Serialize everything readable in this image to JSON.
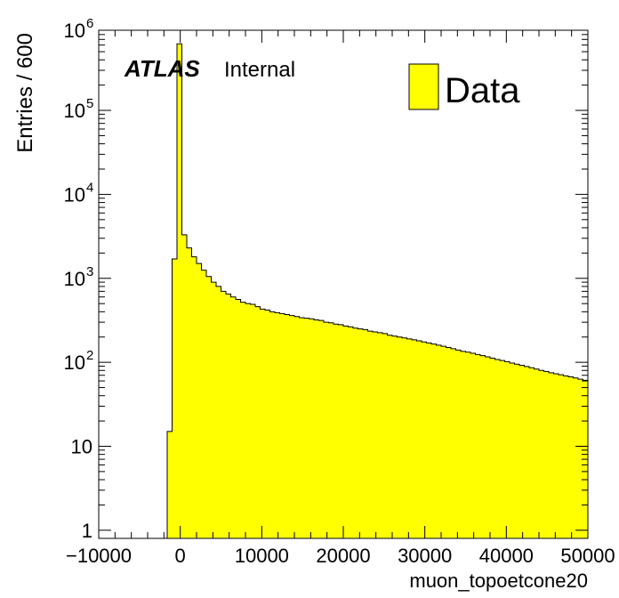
{
  "chart_data": {
    "type": "bar",
    "subtype": "histogram",
    "x_axis": {
      "label": "muon_topoetcone20",
      "range": [
        -10000,
        50000
      ],
      "tick_labels": [
        "−10000",
        "0",
        "10000",
        "20000",
        "30000",
        "40000",
        "50000"
      ],
      "tick_values": [
        -10000,
        0,
        10000,
        20000,
        30000,
        40000,
        50000
      ]
    },
    "y_axis": {
      "label": "Entries / 600",
      "scale": "log",
      "range": [
        0.8,
        900000
      ],
      "tick_labels": [
        {
          "value": 1,
          "base": "1",
          "exp": ""
        },
        {
          "value": 10,
          "base": "10",
          "exp": ""
        },
        {
          "value": 100,
          "base": "10",
          "exp": "2"
        },
        {
          "value": 1000,
          "base": "10",
          "exp": "3"
        },
        {
          "value": 10000,
          "base": "10",
          "exp": "4"
        },
        {
          "value": 100000,
          "base": "10",
          "exp": "5"
        },
        {
          "value": 1000000,
          "base": "10",
          "exp": "6"
        }
      ]
    },
    "bin_width": 600,
    "first_bin_low_edge": -10000,
    "bin_values": [
      0,
      0,
      0,
      0,
      0,
      0,
      0,
      0,
      0,
      0,
      0,
      0,
      0,
      0,
      15,
      1700,
      620000,
      3300,
      2300,
      1800,
      1500,
      1250,
      1050,
      900,
      800,
      700,
      650,
      600,
      560,
      520,
      500,
      490,
      460,
      430,
      420,
      400,
      390,
      380,
      370,
      360,
      350,
      340,
      335,
      330,
      320,
      315,
      300,
      295,
      285,
      280,
      270,
      265,
      255,
      250,
      245,
      235,
      230,
      225,
      220,
      210,
      205,
      200,
      195,
      190,
      185,
      180,
      175,
      170,
      165,
      160,
      155,
      150,
      145,
      140,
      135,
      132,
      128,
      124,
      120,
      116,
      112,
      108,
      105,
      102,
      98,
      95,
      92,
      89,
      86,
      83,
      80,
      78,
      75,
      73,
      71,
      69,
      67,
      65,
      63,
      61,
      60,
      58,
      56
    ],
    "series": [
      {
        "name": "Data",
        "color": "#ffff00",
        "edge": "#000000"
      }
    ],
    "legend": {
      "position": "top-right",
      "entries": [
        "Data"
      ]
    },
    "annotations": {
      "experiment": "ATLAS",
      "status": "Internal"
    }
  }
}
